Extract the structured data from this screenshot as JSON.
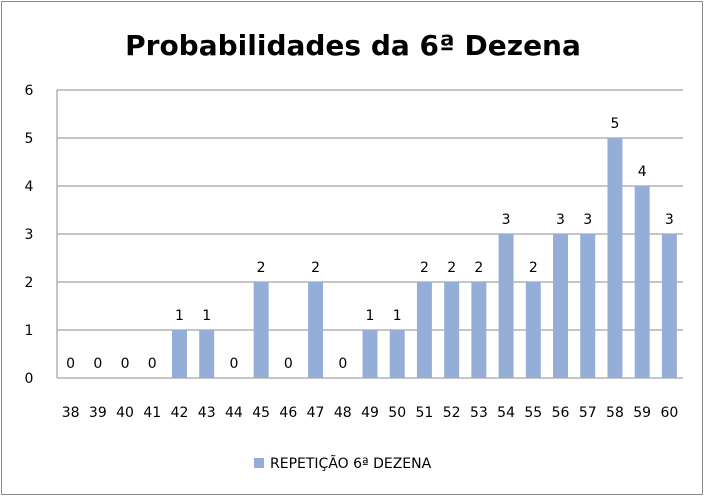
{
  "chart_data": {
    "type": "bar",
    "title": "Probabilidades da 6ª Dezena",
    "xlabel": "",
    "ylabel": "",
    "ylim": [
      0,
      6
    ],
    "yticks": [
      0,
      1,
      2,
      3,
      4,
      5,
      6
    ],
    "grid": true,
    "legend_position": "bottom",
    "categories": [
      "38",
      "39",
      "40",
      "41",
      "42",
      "43",
      "44",
      "45",
      "46",
      "47",
      "48",
      "49",
      "50",
      "51",
      "52",
      "53",
      "54",
      "55",
      "56",
      "57",
      "58",
      "59",
      "60"
    ],
    "series": [
      {
        "name": "REPETIÇÃO 6ª DEZENA",
        "color": "#95aed8",
        "values": [
          0,
          0,
          0,
          0,
          1,
          1,
          0,
          2,
          0,
          2,
          0,
          1,
          1,
          2,
          2,
          2,
          3,
          2,
          3,
          3,
          5,
          4,
          3
        ]
      }
    ]
  }
}
